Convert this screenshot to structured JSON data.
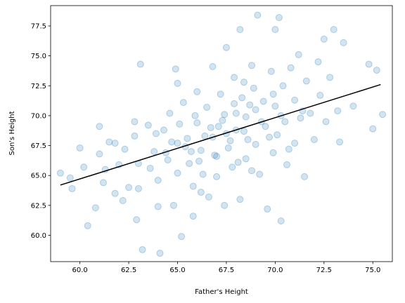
{
  "chart_data": {
    "type": "scatter",
    "title": "",
    "xlabel": "Father's Height",
    "ylabel": "Son's Height",
    "xlim": [
      58.5,
      76.0
    ],
    "ylim": [
      57.8,
      79.2
    ],
    "xticks": [
      "60.0",
      "62.5",
      "65.0",
      "67.5",
      "70.0",
      "72.5",
      "75.0"
    ],
    "yticks": [
      "60.0",
      "62.5",
      "65.0",
      "67.5",
      "70.0",
      "72.5",
      "75.0",
      "77.5"
    ],
    "grid": false,
    "legend": "none",
    "point_color": "#1f77b4",
    "point_alpha": 0.2,
    "line_color": "#000000",
    "fit_line": {
      "x": [
        59.0,
        75.4
      ],
      "y": [
        64.2,
        72.6
      ]
    },
    "points": [
      [
        59.0,
        65.2
      ],
      [
        59.5,
        64.8
      ],
      [
        59.6,
        63.9
      ],
      [
        60.0,
        67.3
      ],
      [
        60.2,
        65.7
      ],
      [
        60.4,
        60.8
      ],
      [
        60.8,
        62.3
      ],
      [
        61.0,
        69.1
      ],
      [
        61.0,
        66.8
      ],
      [
        61.2,
        64.4
      ],
      [
        61.3,
        65.5
      ],
      [
        61.5,
        67.8
      ],
      [
        61.8,
        67.7
      ],
      [
        61.8,
        63.5
      ],
      [
        62.0,
        65.9
      ],
      [
        62.2,
        62.9
      ],
      [
        62.3,
        67.2
      ],
      [
        62.5,
        64.0
      ],
      [
        62.8,
        69.5
      ],
      [
        62.8,
        68.3
      ],
      [
        62.9,
        61.3
      ],
      [
        63.0,
        66.0
      ],
      [
        63.0,
        63.9
      ],
      [
        63.1,
        74.3
      ],
      [
        63.2,
        58.8
      ],
      [
        63.5,
        69.2
      ],
      [
        63.6,
        65.6
      ],
      [
        63.8,
        67.0
      ],
      [
        64.0,
        64.6
      ],
      [
        64.0,
        62.4
      ],
      [
        64.1,
        58.5
      ],
      [
        64.3,
        68.8
      ],
      [
        64.5,
        66.3
      ],
      [
        64.6,
        70.2
      ],
      [
        64.8,
        62.5
      ],
      [
        64.9,
        73.9
      ],
      [
        65.0,
        72.7
      ],
      [
        65.0,
        67.7
      ],
      [
        65.0,
        65.2
      ],
      [
        65.2,
        59.9
      ],
      [
        65.3,
        71.1
      ],
      [
        65.5,
        68.1
      ],
      [
        65.6,
        66.0
      ],
      [
        65.8,
        64.1
      ],
      [
        65.8,
        61.6
      ],
      [
        66.0,
        72.0
      ],
      [
        66.0,
        69.4
      ],
      [
        66.2,
        67.1
      ],
      [
        66.3,
        65.1
      ],
      [
        66.5,
        70.7
      ],
      [
        66.6,
        63.2
      ],
      [
        66.8,
        74.1
      ],
      [
        66.8,
        68.2
      ],
      [
        67.0,
        66.6
      ],
      [
        67.0,
        64.9
      ],
      [
        67.2,
        71.8
      ],
      [
        67.3,
        69.6
      ],
      [
        67.4,
        62.5
      ],
      [
        67.5,
        75.7
      ],
      [
        67.5,
        68.5
      ],
      [
        67.6,
        67.3
      ],
      [
        67.8,
        65.7
      ],
      [
        67.9,
        73.2
      ],
      [
        68.0,
        70.2
      ],
      [
        68.0,
        68.8
      ],
      [
        68.2,
        77.2
      ],
      [
        68.2,
        63.0
      ],
      [
        68.3,
        71.5
      ],
      [
        68.5,
        69.9
      ],
      [
        68.5,
        66.4
      ],
      [
        68.6,
        68.0
      ],
      [
        68.8,
        74.2
      ],
      [
        68.9,
        72.3
      ],
      [
        69.0,
        70.5
      ],
      [
        69.0,
        67.6
      ],
      [
        69.1,
        78.4
      ],
      [
        69.2,
        65.1
      ],
      [
        69.4,
        71.2
      ],
      [
        69.5,
        69.1
      ],
      [
        69.6,
        62.2
      ],
      [
        69.8,
        73.7
      ],
      [
        69.9,
        66.9
      ],
      [
        70.0,
        77.2
      ],
      [
        70.0,
        70.8
      ],
      [
        70.1,
        68.4
      ],
      [
        70.2,
        78.2
      ],
      [
        70.3,
        61.2
      ],
      [
        70.4,
        72.5
      ],
      [
        70.5,
        69.5
      ],
      [
        70.6,
        65.9
      ],
      [
        70.8,
        74.0
      ],
      [
        71.0,
        67.7
      ],
      [
        71.0,
        71.3
      ],
      [
        71.2,
        75.1
      ],
      [
        71.3,
        69.8
      ],
      [
        71.5,
        64.9
      ],
      [
        71.6,
        72.9
      ],
      [
        71.8,
        70.2
      ],
      [
        72.0,
        68.0
      ],
      [
        72.2,
        74.5
      ],
      [
        72.3,
        71.7
      ],
      [
        72.5,
        76.4
      ],
      [
        72.6,
        69.5
      ],
      [
        72.8,
        73.2
      ],
      [
        73.0,
        77.2
      ],
      [
        73.2,
        70.4
      ],
      [
        73.3,
        67.8
      ],
      [
        73.5,
        76.1
      ],
      [
        74.0,
        70.8
      ],
      [
        74.8,
        74.3
      ],
      [
        75.2,
        73.8
      ],
      [
        75.5,
        70.1
      ],
      [
        75.0,
        68.9
      ],
      [
        65.7,
        67.0
      ],
      [
        66.4,
        68.3
      ],
      [
        67.1,
        69.1
      ],
      [
        66.9,
        66.7
      ],
      [
        67.7,
        67.9
      ],
      [
        68.4,
        68.7
      ],
      [
        69.3,
        69.5
      ],
      [
        66.1,
        66.2
      ],
      [
        65.4,
        67.4
      ],
      [
        67.4,
        70.1
      ],
      [
        68.1,
        66.1
      ],
      [
        68.7,
        70.9
      ],
      [
        69.7,
        68.2
      ],
      [
        70.3,
        70.0
      ],
      [
        64.7,
        67.8
      ],
      [
        65.9,
        70.0
      ],
      [
        67.9,
        71.0
      ],
      [
        68.8,
        65.4
      ],
      [
        66.7,
        69.0
      ],
      [
        69.9,
        71.8
      ],
      [
        70.7,
        67.2
      ],
      [
        64.4,
        66.9
      ],
      [
        66.2,
        63.6
      ],
      [
        68.4,
        72.8
      ],
      [
        63.9,
        68.5
      ],
      [
        71.4,
        70.4
      ],
      [
        65.1,
        69.3
      ]
    ]
  }
}
